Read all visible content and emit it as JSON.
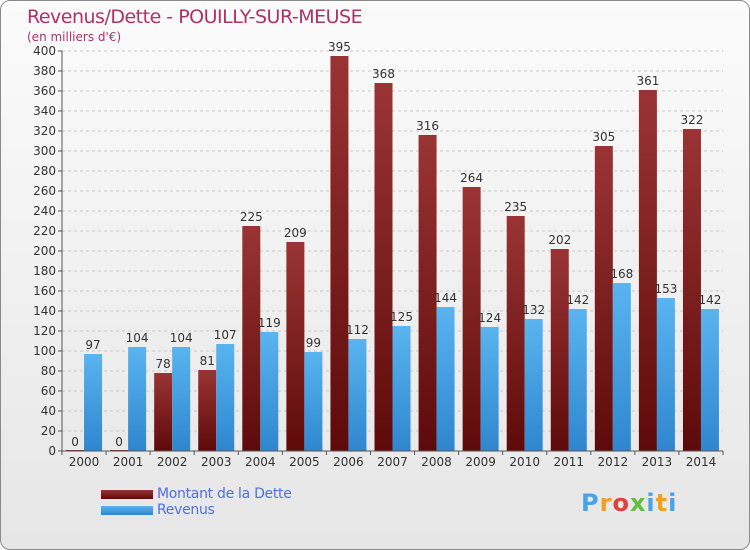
{
  "chart_data": {
    "type": "bar",
    "title": "Revenus/Dette - POUILLY-SUR-MEUSE",
    "subtitle": "(en milliers d'€)",
    "categories": [
      "2000",
      "2001",
      "2002",
      "2003",
      "2004",
      "2005",
      "2006",
      "2007",
      "2008",
      "2009",
      "2010",
      "2011",
      "2012",
      "2013",
      "2014"
    ],
    "series": [
      {
        "name": "Montant de la Dette",
        "color": "#7a1e1e",
        "values": [
          0,
          0,
          78,
          81,
          225,
          209,
          395,
          368,
          316,
          264,
          235,
          202,
          305,
          361,
          322
        ]
      },
      {
        "name": "Revenus",
        "color": "#4aa3e6",
        "values": [
          97,
          104,
          104,
          107,
          119,
          99,
          112,
          125,
          144,
          124,
          132,
          142,
          168,
          153,
          142
        ]
      }
    ],
    "ylim": [
      0,
      400
    ],
    "ytick_step": 20,
    "grid": true,
    "legend_position": "bottom-left"
  },
  "logo": {
    "text": "Proxiti",
    "letters": [
      {
        "char": "P",
        "color": "#4aa3e6"
      },
      {
        "char": "r",
        "color": "#f0a020"
      },
      {
        "char": "o",
        "color": "#e04040"
      },
      {
        "char": "x",
        "color": "#5fbf3f"
      },
      {
        "char": "i",
        "color": "#4aa3e6"
      },
      {
        "char": "t",
        "color": "#f0a020"
      },
      {
        "char": "i",
        "color": "#4aa3e6"
      }
    ]
  }
}
